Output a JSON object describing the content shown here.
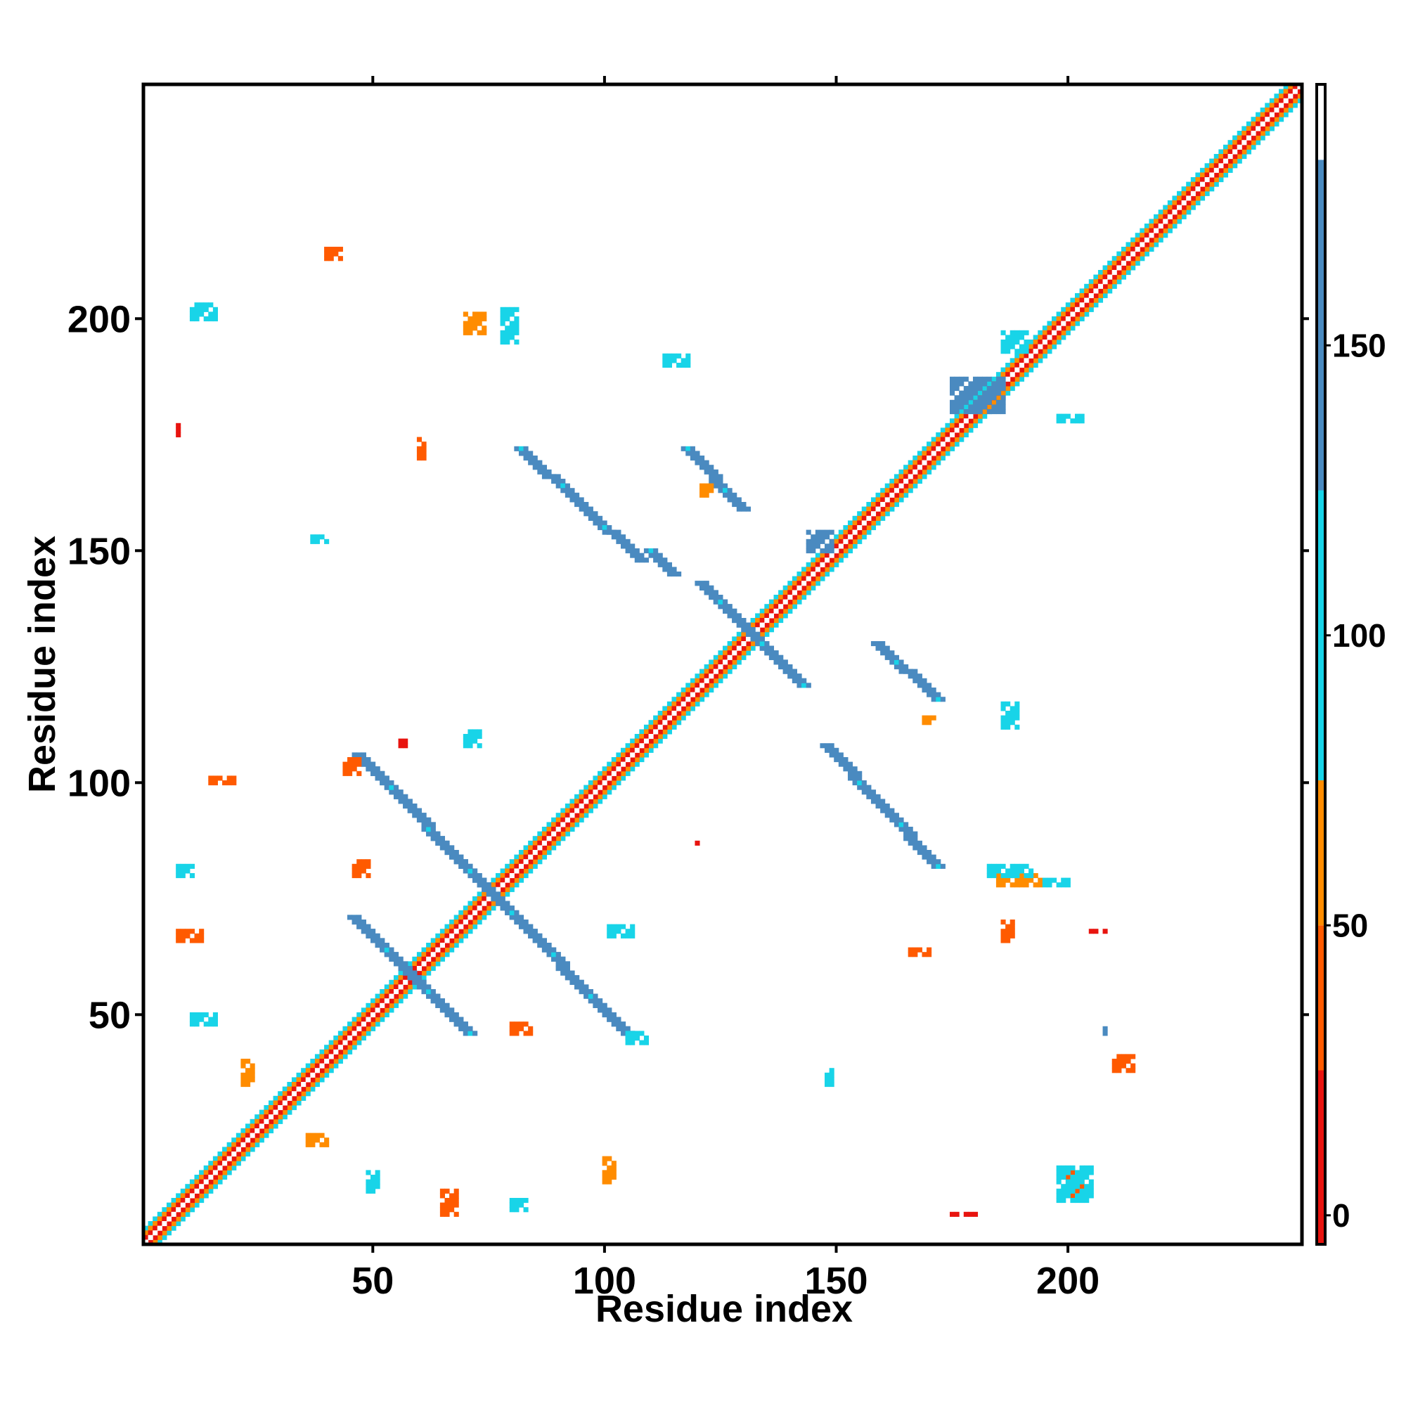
{
  "chart_data": {
    "type": "heatmap",
    "title": "",
    "xlabel": "Residue index",
    "ylabel": "Residue index",
    "xlim": [
      1,
      250
    ],
    "ylim": [
      1,
      250
    ],
    "xticks": [
      50,
      100,
      150,
      200
    ],
    "yticks": [
      50,
      100,
      150,
      200
    ],
    "colorbar": {
      "ticks": [
        0,
        50,
        100,
        150
      ],
      "range": [
        -5,
        195
      ],
      "bands": [
        {
          "from": -5,
          "to": 25,
          "color": "#e8140f"
        },
        {
          "from": 25,
          "to": 50,
          "color": "#ff5a00"
        },
        {
          "from": 50,
          "to": 75,
          "color": "#ff8c00"
        },
        {
          "from": 75,
          "to": 125,
          "color": "#18d4e8"
        },
        {
          "from": 125,
          "to": 182,
          "color": "#4a8ac0"
        },
        {
          "from": 182,
          "to": 195,
          "color": "#ffffff"
        }
      ]
    },
    "diagonal_bands": [
      {
        "offset": 0,
        "color": "#ffffff"
      },
      {
        "offset": 1,
        "color": "#e8140f"
      },
      {
        "offset": 2,
        "color": "#ff8c00"
      },
      {
        "offset": 3,
        "color": "#18d4e8"
      }
    ],
    "strands": [
      {
        "x1": 47,
        "y1": 106,
        "x2": 106,
        "y2": 45,
        "color": "#4a8ac0"
      },
      {
        "x1": 106,
        "y1": 45,
        "x2": 47,
        "y2": 106,
        "color": "#4a8ac0"
      },
      {
        "x1": 46,
        "y1": 71,
        "x2": 71,
        "y2": 46,
        "color": "#4a8ac0"
      },
      {
        "x1": 71,
        "y1": 46,
        "x2": 46,
        "y2": 71,
        "color": "#4a8ac0"
      },
      {
        "x1": 82,
        "y1": 172,
        "x2": 108,
        "y2": 148,
        "color": "#4a8ac0"
      },
      {
        "x1": 172,
        "y1": 82,
        "x2": 148,
        "y2": 108,
        "color": "#4a8ac0"
      },
      {
        "x1": 118,
        "y1": 172,
        "x2": 130,
        "y2": 159,
        "color": "#4a8ac0"
      },
      {
        "x1": 172,
        "y1": 118,
        "x2": 159,
        "y2": 130,
        "color": "#4a8ac0"
      },
      {
        "x1": 121,
        "y1": 143,
        "x2": 143,
        "y2": 121,
        "color": "#4a8ac0"
      },
      {
        "x1": 143,
        "y1": 121,
        "x2": 121,
        "y2": 143,
        "color": "#4a8ac0"
      },
      {
        "x1": 110,
        "y1": 150,
        "x2": 115,
        "y2": 145,
        "color": "#4a8ac0"
      }
    ],
    "clusters": [
      {
        "x": 11,
        "y": 200,
        "w": 6,
        "h": 4,
        "color": "#18d4e8"
      },
      {
        "x": 200,
        "y": 11,
        "w": 4,
        "h": 6,
        "color": "#ff5a00"
      },
      {
        "x": 40,
        "y": 213,
        "w": 4,
        "h": 3,
        "color": "#ff5a00"
      },
      {
        "x": 70,
        "y": 197,
        "w": 5,
        "h": 5,
        "color": "#ff8c00"
      },
      {
        "x": 78,
        "y": 195,
        "w": 4,
        "h": 8,
        "color": "#18d4e8"
      },
      {
        "x": 113,
        "y": 190,
        "w": 6,
        "h": 3,
        "color": "#18d4e8"
      },
      {
        "x": 121,
        "y": 162,
        "w": 3,
        "h": 3,
        "color": "#ff8c00"
      },
      {
        "x": 60,
        "y": 170,
        "w": 2,
        "h": 5,
        "color": "#ff5a00"
      },
      {
        "x": 8,
        "y": 175,
        "w": 1,
        "h": 4,
        "color": "#e8140f"
      },
      {
        "x": 37,
        "y": 152,
        "w": 4,
        "h": 2,
        "color": "#18d4e8"
      },
      {
        "x": 175,
        "y": 180,
        "w": 12,
        "h": 8,
        "color": "#4a8ac0"
      },
      {
        "x": 186,
        "y": 193,
        "w": 6,
        "h": 5,
        "color": "#18d4e8"
      },
      {
        "x": 198,
        "y": 178,
        "w": 6,
        "h": 2,
        "color": "#18d4e8"
      },
      {
        "x": 44,
        "y": 102,
        "w": 4,
        "h": 4,
        "color": "#ff5a00"
      },
      {
        "x": 70,
        "y": 108,
        "w": 4,
        "h": 4,
        "color": "#18d4e8"
      },
      {
        "x": 15,
        "y": 100,
        "w": 6,
        "h": 2,
        "color": "#ff5a00"
      },
      {
        "x": 8,
        "y": 80,
        "w": 4,
        "h": 3,
        "color": "#18d4e8"
      },
      {
        "x": 8,
        "y": 66,
        "w": 6,
        "h": 3,
        "color": "#ff5a00"
      },
      {
        "x": 11,
        "y": 48,
        "w": 6,
        "h": 3,
        "color": "#18d4e8"
      },
      {
        "x": 46,
        "y": 80,
        "w": 4,
        "h": 4,
        "color": "#ff5a00"
      },
      {
        "x": 101,
        "y": 67,
        "w": 6,
        "h": 3,
        "color": "#18d4e8"
      },
      {
        "x": 80,
        "y": 46,
        "w": 5,
        "h": 3,
        "color": "#ff5a00"
      },
      {
        "x": 105,
        "y": 44,
        "w": 5,
        "h": 3,
        "color": "#18d4e8"
      },
      {
        "x": 166,
        "y": 63,
        "w": 5,
        "h": 2,
        "color": "#ff5a00"
      },
      {
        "x": 185,
        "y": 78,
        "w": 10,
        "h": 3,
        "color": "#ff8c00"
      },
      {
        "x": 183,
        "y": 80,
        "w": 10,
        "h": 3,
        "color": "#18d4e8"
      },
      {
        "x": 195,
        "y": 78,
        "w": 6,
        "h": 2,
        "color": "#18d4e8"
      },
      {
        "x": 186,
        "y": 66,
        "w": 3,
        "h": 5,
        "color": "#ff5a00"
      },
      {
        "x": 205,
        "y": 68,
        "w": 4,
        "h": 1,
        "color": "#e8140f"
      },
      {
        "x": 186,
        "y": 112,
        "w": 4,
        "h": 6,
        "color": "#18d4e8"
      },
      {
        "x": 169,
        "y": 113,
        "w": 3,
        "h": 2,
        "color": "#ff8c00"
      },
      {
        "x": 148,
        "y": 35,
        "w": 2,
        "h": 4,
        "color": "#18d4e8"
      },
      {
        "x": 210,
        "y": 38,
        "w": 5,
        "h": 4,
        "color": "#ff5a00"
      },
      {
        "x": 208,
        "y": 46,
        "w": 1,
        "h": 2,
        "color": "#4a8ac0"
      },
      {
        "x": 198,
        "y": 10,
        "w": 8,
        "h": 8,
        "color": "#18d4e8"
      },
      {
        "x": 36,
        "y": 22,
        "w": 5,
        "h": 3,
        "color": "#ff8c00"
      },
      {
        "x": 49,
        "y": 12,
        "w": 3,
        "h": 5,
        "color": "#18d4e8"
      },
      {
        "x": 65,
        "y": 7,
        "w": 4,
        "h": 6,
        "color": "#ff5a00"
      },
      {
        "x": 80,
        "y": 8,
        "w": 4,
        "h": 3,
        "color": "#18d4e8"
      },
      {
        "x": 100,
        "y": 14,
        "w": 3,
        "h": 6,
        "color": "#ff8c00"
      },
      {
        "x": 175,
        "y": 7,
        "w": 6,
        "h": 1,
        "color": "#e8140f"
      },
      {
        "x": 22,
        "y": 35,
        "w": 3,
        "h": 6,
        "color": "#ff8c00"
      },
      {
        "x": 144,
        "y": 150,
        "w": 6,
        "h": 5,
        "color": "#4a8ac0"
      },
      {
        "x": 56,
        "y": 108,
        "w": 2,
        "h": 2,
        "color": "#e8140f"
      },
      {
        "x": 120,
        "y": 87,
        "w": 1,
        "h": 1,
        "color": "#e8140f"
      }
    ]
  }
}
